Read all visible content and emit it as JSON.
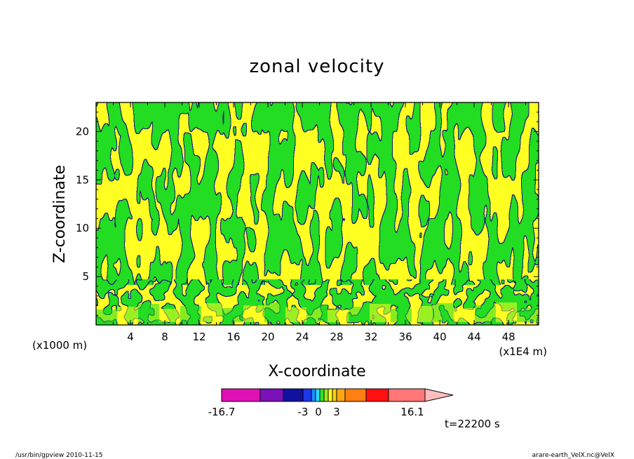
{
  "chart_data": {
    "type": "heatmap",
    "title": "zonal velocity",
    "xlabel": "X-coordinate",
    "ylabel": "Z-coordinate",
    "x_unit_left": "(x1000 m)",
    "x_unit_right": "(x1E4 m)",
    "x_ticks": [
      "4",
      "8",
      "12",
      "16",
      "20",
      "24",
      "28",
      "32",
      "36",
      "40",
      "44",
      "48"
    ],
    "y_ticks": [
      "5",
      "10",
      "15",
      "20"
    ],
    "xlim": [
      0,
      51.5
    ],
    "ylim": [
      0,
      23
    ],
    "fields": {
      "green": "#22dd22",
      "yellow": "#ffff22",
      "outline": "#1a1a7a"
    },
    "colorbar": {
      "colors": [
        "#e011b4",
        "#7b11b8",
        "#1111a0",
        "#1c38e6",
        "#1b8cff",
        "#2ad8ff",
        "#2ce62c",
        "#9be81e",
        "#ffff1e",
        "#ffcc11",
        "#ffa611",
        "#ff7f11",
        "#ff1111",
        "#ff7777",
        "#ffbdbd"
      ],
      "labels": [
        "-16.7",
        "-3",
        "0",
        "3",
        "16.1"
      ]
    },
    "time_label": "t=22200 s"
  },
  "footer": {
    "left": "/usr/bin/gpview   2010-11-15",
    "right": "arare-earth_VelX.nc@VelX"
  }
}
